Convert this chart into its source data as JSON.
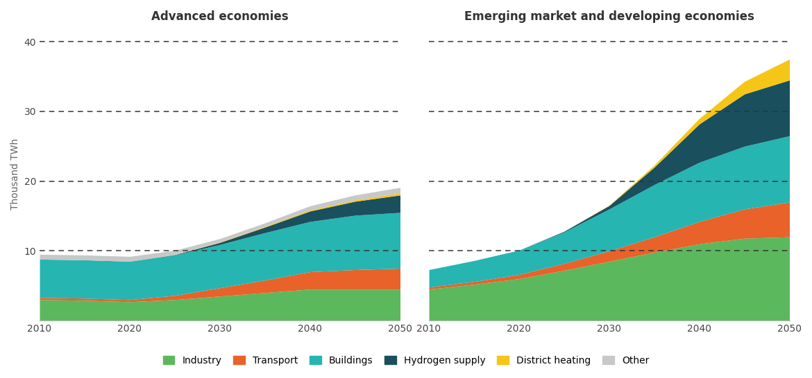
{
  "title_left": "Advanced economies",
  "title_right": "Emerging market and developing economies",
  "ylabel": "Thousand TWh",
  "years": [
    2010,
    2015,
    2020,
    2025,
    2030,
    2035,
    2040,
    2045,
    2050
  ],
  "adv": {
    "Industry": [
      3.0,
      2.9,
      2.7,
      3.0,
      3.5,
      4.0,
      4.5,
      4.5,
      4.5
    ],
    "Transport": [
      0.3,
      0.3,
      0.3,
      0.6,
      1.2,
      1.8,
      2.5,
      2.8,
      3.0
    ],
    "Buildings": [
      5.5,
      5.5,
      5.5,
      5.8,
      6.2,
      6.8,
      7.2,
      7.8,
      8.0
    ],
    "Hydrogen supply": [
      0.0,
      0.0,
      0.0,
      0.05,
      0.3,
      0.8,
      1.5,
      2.0,
      2.5
    ],
    "District heating": [
      0.0,
      0.0,
      0.0,
      0.02,
      0.05,
      0.1,
      0.15,
      0.2,
      0.3
    ],
    "Other": [
      0.7,
      0.7,
      0.7,
      0.6,
      0.5,
      0.5,
      0.6,
      0.7,
      0.8
    ]
  },
  "emde": {
    "Industry": [
      4.5,
      5.2,
      6.0,
      7.2,
      8.5,
      9.8,
      11.0,
      11.8,
      12.0
    ],
    "Transport": [
      0.3,
      0.4,
      0.6,
      1.0,
      1.5,
      2.2,
      3.2,
      4.2,
      5.0
    ],
    "Buildings": [
      2.5,
      3.0,
      3.5,
      4.5,
      6.0,
      7.5,
      8.5,
      9.0,
      9.5
    ],
    "Hydrogen supply": [
      0.0,
      0.0,
      0.0,
      0.1,
      0.5,
      2.5,
      5.5,
      7.5,
      8.0
    ],
    "District heating": [
      0.0,
      0.0,
      0.0,
      0.0,
      0.05,
      0.3,
      0.8,
      1.8,
      3.0
    ],
    "Other": [
      0.0,
      0.0,
      0.0,
      0.0,
      0.0,
      0.0,
      0.0,
      0.0,
      0.0
    ]
  },
  "colors": {
    "Industry": "#5cb85c",
    "Transport": "#e8622a",
    "Buildings": "#26b5b0",
    "Hydrogen supply": "#1a4f5e",
    "District heating": "#f5c518",
    "Other": "#c8c8c8"
  },
  "ylim": [
    0,
    42
  ],
  "yticks": [
    10,
    20,
    30,
    40
  ],
  "dashed_yticks": [
    10,
    20,
    30,
    40
  ],
  "background_color": "#ffffff",
  "dashed_line_color": "#333333",
  "title_fontsize": 12,
  "label_fontsize": 10,
  "tick_fontsize": 10
}
